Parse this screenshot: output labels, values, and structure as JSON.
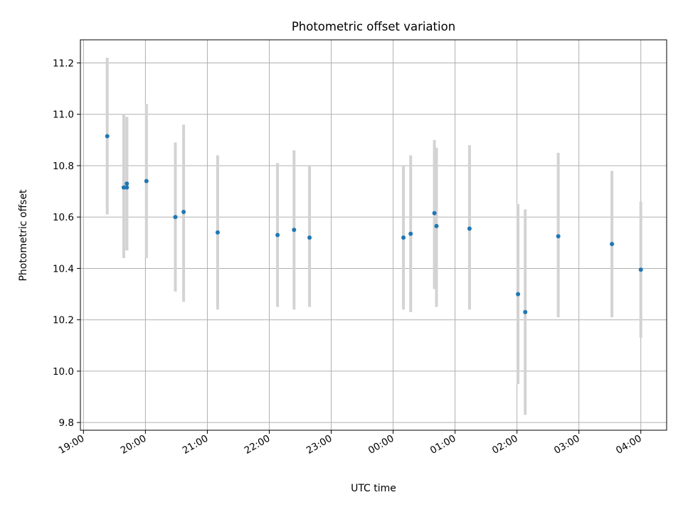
{
  "chart_data": {
    "type": "scatter",
    "title": "Photometric offset variation",
    "xlabel": "UTC time",
    "ylabel": "Photometric offset",
    "x_unit": "UTC time (HH:MM)",
    "xlim": [
      "18:57",
      "04:25"
    ],
    "ylim": [
      9.77,
      11.29
    ],
    "x_ticks": [
      "19:00",
      "20:00",
      "21:00",
      "22:00",
      "23:00",
      "00:00",
      "01:00",
      "02:00",
      "03:00",
      "04:00"
    ],
    "y_ticks": [
      9.8,
      10.0,
      10.2,
      10.4,
      10.6,
      10.8,
      11.0,
      11.2
    ],
    "y_tick_labels": [
      "9.8",
      "10.0",
      "10.2",
      "10.4",
      "10.6",
      "10.8",
      "11.0",
      "11.2"
    ],
    "grid": true,
    "legend": "none",
    "colors": {
      "point": "#1f77b4",
      "errorbar": "#d3d3d3",
      "grid": "#b0b0b0"
    },
    "points": [
      {
        "x": "19:23",
        "y": 10.915,
        "low": 10.61,
        "high": 11.22
      },
      {
        "x": "19:39",
        "y": 10.715,
        "low": 10.44,
        "high": 11.0
      },
      {
        "x": "19:42",
        "y": 10.73,
        "low": 10.47,
        "high": 10.99
      },
      {
        "x": "19:42",
        "y": 10.715,
        "low": 10.47,
        "high": 10.99
      },
      {
        "x": "20:01",
        "y": 10.74,
        "low": 10.44,
        "high": 11.04
      },
      {
        "x": "20:29",
        "y": 10.6,
        "low": 10.31,
        "high": 10.89
      },
      {
        "x": "20:37",
        "y": 10.62,
        "low": 10.27,
        "high": 10.96
      },
      {
        "x": "21:10",
        "y": 10.54,
        "low": 10.24,
        "high": 10.84
      },
      {
        "x": "22:08",
        "y": 10.53,
        "low": 10.25,
        "high": 10.81
      },
      {
        "x": "22:24",
        "y": 10.55,
        "low": 10.24,
        "high": 10.86
      },
      {
        "x": "22:39",
        "y": 10.52,
        "low": 10.25,
        "high": 10.8
      },
      {
        "x": "00:10",
        "y": 10.52,
        "low": 10.24,
        "high": 10.8
      },
      {
        "x": "00:17",
        "y": 10.535,
        "low": 10.23,
        "high": 10.84
      },
      {
        "x": "00:40",
        "y": 10.615,
        "low": 10.32,
        "high": 10.9
      },
      {
        "x": "00:42",
        "y": 10.565,
        "low": 10.25,
        "high": 10.87
      },
      {
        "x": "01:14",
        "y": 10.555,
        "low": 10.24,
        "high": 10.88
      },
      {
        "x": "02:01",
        "y": 10.3,
        "low": 9.95,
        "high": 10.65
      },
      {
        "x": "02:08",
        "y": 10.23,
        "low": 9.83,
        "high": 10.63
      },
      {
        "x": "02:40",
        "y": 10.525,
        "low": 10.21,
        "high": 10.85
      },
      {
        "x": "03:32",
        "y": 10.495,
        "low": 10.21,
        "high": 10.78
      },
      {
        "x": "04:00",
        "y": 10.395,
        "low": 10.13,
        "high": 10.66
      }
    ]
  }
}
